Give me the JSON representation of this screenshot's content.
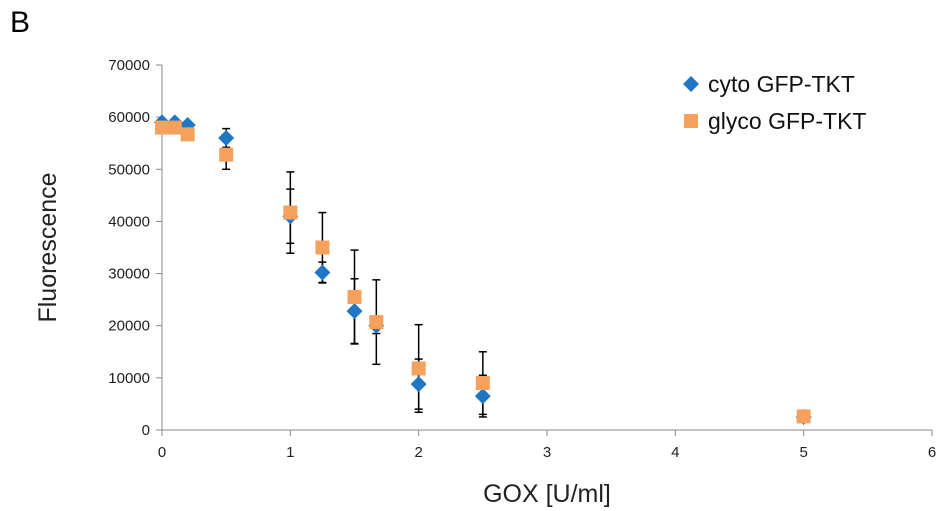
{
  "panel_label": "B",
  "chart_data": {
    "type": "scatter",
    "xlabel": "GOX [U/ml]",
    "ylabel": "Fluorescence",
    "xlim": [
      0,
      6
    ],
    "ylim": [
      0,
      70000
    ],
    "xticks": [
      0,
      1,
      2,
      3,
      4,
      5,
      6
    ],
    "yticks": [
      0,
      10000,
      20000,
      30000,
      40000,
      50000,
      60000,
      70000
    ],
    "grid": false,
    "legend_position": "top-right",
    "series": [
      {
        "name": "cyto GFP-TKT",
        "marker": "diamond",
        "color": "#1f77c4",
        "points": [
          {
            "x": 0,
            "y": 59000,
            "err": 0
          },
          {
            "x": 0.1,
            "y": 59000,
            "err": 0
          },
          {
            "x": 0.2,
            "y": 58500,
            "err": 0
          },
          {
            "x": 0.5,
            "y": 56000,
            "err": 1800
          },
          {
            "x": 1.0,
            "y": 41000,
            "err": 5200
          },
          {
            "x": 1.25,
            "y": 30200,
            "err": 2000
          },
          {
            "x": 1.5,
            "y": 22800,
            "err": 6200
          },
          {
            "x": 1.67,
            "y": 20000,
            "err": 1500
          },
          {
            "x": 2.0,
            "y": 8800,
            "err": 4800
          },
          {
            "x": 2.5,
            "y": 6500,
            "err": 4000
          },
          {
            "x": 5.0,
            "y": 2500,
            "err": 0
          }
        ]
      },
      {
        "name": "glyco GFP-TKT",
        "marker": "square",
        "color": "#f4a15d",
        "points": [
          {
            "x": 0,
            "y": 58000,
            "err": 0
          },
          {
            "x": 0.1,
            "y": 58000,
            "err": 0
          },
          {
            "x": 0.2,
            "y": 56700,
            "err": 0
          },
          {
            "x": 0.5,
            "y": 52800,
            "err": 2800
          },
          {
            "x": 1.0,
            "y": 41700,
            "err": 7800
          },
          {
            "x": 1.25,
            "y": 35000,
            "err": 6700
          },
          {
            "x": 1.5,
            "y": 25500,
            "err": 9000
          },
          {
            "x": 1.67,
            "y": 20700,
            "err": 8100
          },
          {
            "x": 2.0,
            "y": 11800,
            "err": 8400
          },
          {
            "x": 2.5,
            "y": 9000,
            "err": 6000
          },
          {
            "x": 5.0,
            "y": 2600,
            "err": 0
          }
        ]
      }
    ]
  }
}
